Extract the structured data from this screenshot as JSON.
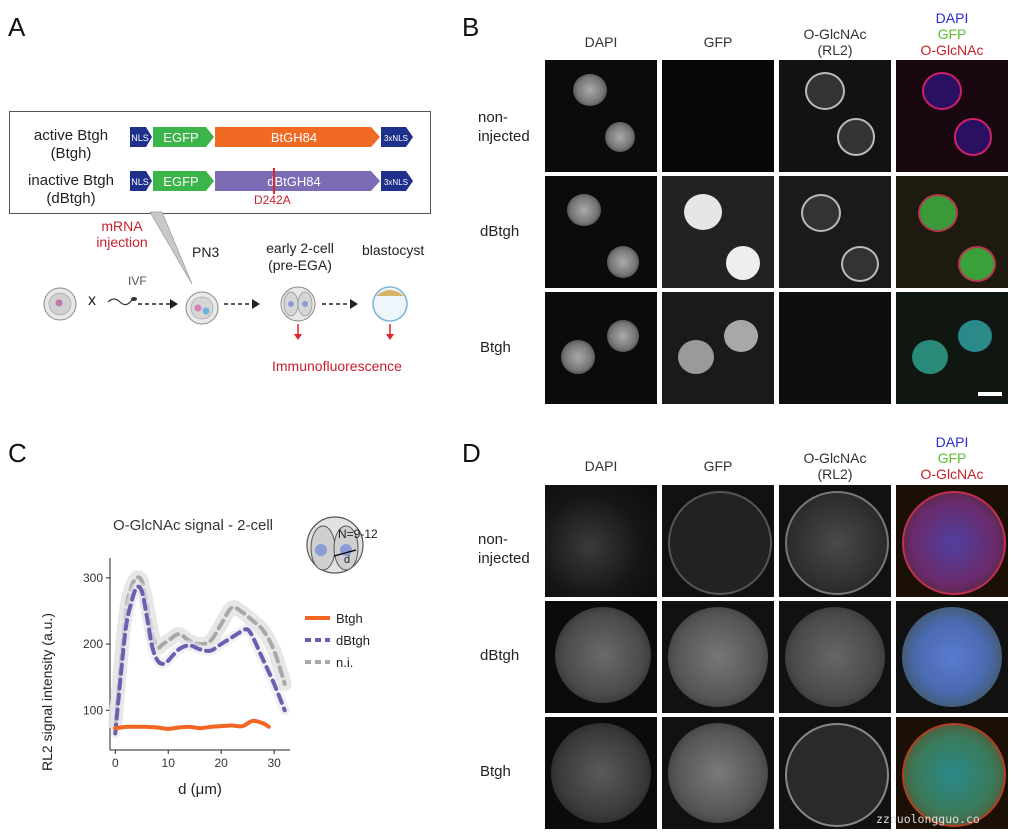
{
  "panels": {
    "a": "A",
    "b": "B",
    "c": "C",
    "d": "D"
  },
  "panel_a": {
    "constructs": [
      {
        "name_line1": "active Btgh",
        "name_line2": "(Btgh)",
        "nls_left": "NLS",
        "egfp": "EGFP",
        "enzyme": "BtGH84",
        "nls_right": "3xNLS"
      },
      {
        "name_line1": "inactive Btgh",
        "name_line2": "(dBtgh)",
        "nls_left": "NLS",
        "egfp": "EGFP",
        "enzyme": "dBtGH84",
        "nls_right": "3xNLS",
        "mutation": "D242A"
      }
    ],
    "injection_line1": "mRNA",
    "injection_line2": "injection",
    "ivf": "IVF",
    "cross": "x",
    "pn3": "PN3",
    "early_line1": "early 2-cell",
    "early_line2": "(pre-EGA)",
    "blastocyst": "blastocyst",
    "readout": "Immunofluorescence"
  },
  "panel_b": {
    "columns": [
      {
        "line1": "DAPI",
        "line2": ""
      },
      {
        "line1": "GFP",
        "line2": ""
      },
      {
        "line1": "O-GlcNAc",
        "line2": "(RL2)"
      }
    ],
    "merge": {
      "l1": "DAPI",
      "l2": "GFP",
      "l3": "O-GlcNAc"
    },
    "rows": [
      {
        "line1": "non-",
        "line2": "injected"
      },
      {
        "line1": "dBtgh",
        "line2": ""
      },
      {
        "line1": "Btgh",
        "line2": ""
      }
    ]
  },
  "panel_d": {
    "columns": [
      {
        "line1": "DAPI",
        "line2": ""
      },
      {
        "line1": "GFP",
        "line2": ""
      },
      {
        "line1": "O-GlcNAc",
        "line2": "(RL2)"
      }
    ],
    "merge": {
      "l1": "DAPI",
      "l2": "GFP",
      "l3": "O-GlcNAc"
    },
    "rows": [
      {
        "line1": "non-",
        "line2": "injected"
      },
      {
        "line1": "dBtgh",
        "line2": ""
      },
      {
        "line1": "Btgh",
        "line2": ""
      }
    ]
  },
  "watermark": "zznuolongguo.co",
  "colors": {
    "nls": "#1f2f8c",
    "egfp": "#3bb54a",
    "active_enzyme": "#f06a23",
    "inactive_enzyme": "#7b6cb5",
    "mutation": "#d8262b",
    "btgh": "#f26522",
    "dbtgh": "#6a5fb0",
    "ni": "#a8a8a8",
    "dapi": "#2a2ad8",
    "gfp": "#5bc12a",
    "oglcnac": "#e0202a"
  },
  "chart_data": {
    "type": "line",
    "title": "O-GlcNAc signal - 2-cell",
    "annotation": "N=9-12",
    "inset_label": "d",
    "xlabel": "d (μm)",
    "ylabel": "RL2 signal intensity (a.u.)",
    "xlim": [
      -1,
      33
    ],
    "ylim": [
      40,
      330
    ],
    "xticks": [
      0,
      10,
      20,
      30
    ],
    "yticks": [
      100,
      200,
      300
    ],
    "legend_position": "right",
    "series": [
      {
        "name": "Btgh",
        "color": "#f26522",
        "style": "solid",
        "x": [
          0,
          2,
          4,
          6,
          8,
          10,
          12,
          14,
          16,
          18,
          20,
          22,
          24,
          26,
          28,
          29
        ],
        "y": [
          73,
          75,
          75,
          75,
          74,
          72,
          74,
          75,
          73,
          75,
          76,
          77,
          76,
          84,
          80,
          75
        ]
      },
      {
        "name": "dBtgh",
        "color": "#6a5fb0",
        "style": "dashed",
        "x": [
          0,
          1,
          2,
          3,
          4,
          5,
          6,
          7,
          8,
          9,
          10,
          12,
          14,
          16,
          18,
          20,
          22,
          24,
          25,
          26,
          28,
          30,
          32
        ],
        "y": [
          65,
          150,
          225,
          262,
          285,
          280,
          240,
          195,
          175,
          170,
          175,
          192,
          198,
          192,
          190,
          200,
          210,
          220,
          222,
          210,
          175,
          140,
          100
        ]
      },
      {
        "name": "n.i.",
        "color": "#a8a8a8",
        "style": "dashed",
        "x": [
          0,
          1,
          2,
          3,
          4,
          5,
          6,
          7,
          8,
          9,
          10,
          12,
          14,
          16,
          18,
          20,
          22,
          24,
          26,
          28,
          30,
          32
        ],
        "y": [
          80,
          170,
          250,
          285,
          300,
          295,
          260,
          215,
          195,
          200,
          205,
          215,
          205,
          200,
          205,
          230,
          255,
          248,
          235,
          220,
          190,
          140
        ]
      }
    ]
  }
}
